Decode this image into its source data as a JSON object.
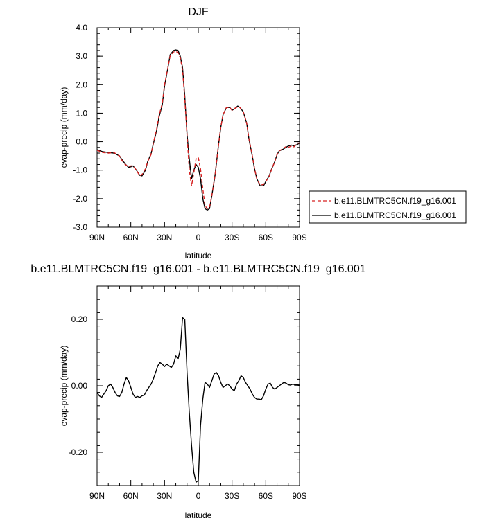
{
  "chart_data": [
    {
      "type": "line",
      "title": "DJF",
      "xlabel": "latitude",
      "ylabel": "evap-precip (mm/day)",
      "xlim": [
        90,
        -90
      ],
      "ylim": [
        -3.0,
        4.0
      ],
      "x_tick_values": [
        90,
        60,
        30,
        0,
        -30,
        -60,
        -90
      ],
      "x_tick_labels": [
        "90N",
        "60N",
        "30N",
        "0",
        "30S",
        "60S",
        "90S"
      ],
      "y_tick_values": [
        4.0,
        3.0,
        2.0,
        1.0,
        0.0,
        -1.0,
        -2.0,
        -3.0
      ],
      "y_tick_labels": [
        "4.0",
        "3.0",
        "2.0",
        "1.0",
        "0.0",
        "-1.0",
        "-2.0",
        "-3.0"
      ],
      "legend_position": "right",
      "series": [
        {
          "name": "b.e11.BLMTRC5CN.f19_g16.001",
          "color": "#d62020",
          "dash": "dashed",
          "x": [
            90,
            85,
            80,
            75,
            70,
            68,
            65,
            62,
            60,
            58,
            55,
            52,
            50,
            47,
            45,
            42,
            40,
            37,
            35,
            32,
            30,
            27,
            25,
            22,
            20,
            18,
            16,
            14,
            12,
            10,
            8,
            6,
            4,
            2,
            0,
            -2,
            -4,
            -6,
            -8,
            -10,
            -12,
            -15,
            -18,
            -20,
            -22,
            -25,
            -28,
            -30,
            -33,
            -35,
            -37,
            -40,
            -43,
            -45,
            -48,
            -50,
            -52,
            -55,
            -58,
            -60,
            -63,
            -65,
            -68,
            -70,
            -72,
            -75,
            -78,
            -80,
            -83,
            -85,
            -88,
            -90
          ],
          "y": [
            -0.3,
            -0.38,
            -0.4,
            -0.38,
            -0.5,
            -0.65,
            -0.8,
            -0.88,
            -0.85,
            -0.85,
            -1.0,
            -1.2,
            -1.15,
            -0.95,
            -0.7,
            -0.45,
            -0.05,
            0.45,
            0.9,
            1.35,
            2.0,
            2.6,
            3.0,
            3.15,
            3.17,
            3.12,
            2.95,
            2.5,
            1.5,
            0.2,
            -1.0,
            -1.55,
            -1.1,
            -0.6,
            -0.55,
            -0.95,
            -1.65,
            -2.25,
            -2.35,
            -2.3,
            -1.9,
            -1.15,
            -0.1,
            0.5,
            0.95,
            1.2,
            1.2,
            1.1,
            1.18,
            1.22,
            1.2,
            1.05,
            0.65,
            0.1,
            -0.5,
            -0.95,
            -1.3,
            -1.52,
            -1.5,
            -1.4,
            -1.22,
            -1.0,
            -0.7,
            -0.45,
            -0.32,
            -0.25,
            -0.17,
            -0.2,
            -0.15,
            -0.18,
            -0.05,
            -0.05
          ]
        },
        {
          "name": "b.e11.BLMTRC5CN.f19_g16.001",
          "color": "#000000",
          "dash": "solid",
          "x": [
            90,
            85,
            80,
            75,
            70,
            68,
            65,
            62,
            60,
            58,
            55,
            52,
            50,
            47,
            45,
            42,
            40,
            37,
            35,
            32,
            30,
            27,
            25,
            22,
            20,
            18,
            16,
            14,
            12,
            10,
            8,
            6,
            4,
            2,
            0,
            -2,
            -4,
            -6,
            -8,
            -10,
            -12,
            -15,
            -18,
            -20,
            -22,
            -25,
            -28,
            -30,
            -33,
            -35,
            -37,
            -40,
            -43,
            -45,
            -48,
            -50,
            -52,
            -55,
            -58,
            -60,
            -63,
            -65,
            -68,
            -70,
            -72,
            -75,
            -78,
            -80,
            -83,
            -85,
            -88,
            -90
          ],
          "y": [
            -0.28,
            -0.35,
            -0.38,
            -0.4,
            -0.5,
            -0.62,
            -0.78,
            -0.9,
            -0.88,
            -0.85,
            -1.0,
            -1.18,
            -1.2,
            -1.0,
            -0.7,
            -0.42,
            -0.08,
            0.4,
            0.85,
            1.3,
            1.95,
            2.6,
            3.05,
            3.2,
            3.22,
            3.2,
            3.0,
            2.6,
            1.6,
            0.25,
            -0.6,
            -1.3,
            -1.0,
            -0.8,
            -0.9,
            -1.3,
            -2.0,
            -2.35,
            -2.4,
            -2.35,
            -1.9,
            -1.15,
            -0.1,
            0.5,
            0.95,
            1.2,
            1.2,
            1.1,
            1.18,
            1.25,
            1.2,
            1.05,
            0.65,
            0.1,
            -0.5,
            -0.95,
            -1.3,
            -1.55,
            -1.55,
            -1.4,
            -1.2,
            -0.98,
            -0.7,
            -0.45,
            -0.32,
            -0.27,
            -0.2,
            -0.15,
            -0.12,
            -0.15,
            -0.1,
            -0.05
          ]
        }
      ]
    },
    {
      "type": "line",
      "title": "b.e11.BLMTRC5CN.f19_g16.001 - b.e11.BLMTRC5CN.f19_g16.001",
      "xlabel": "latitude",
      "ylabel": "evap-precip (mm/day)",
      "xlim": [
        90,
        -90
      ],
      "ylim": [
        -0.3,
        0.3
      ],
      "x_tick_values": [
        90,
        60,
        30,
        0,
        -30,
        -60,
        -90
      ],
      "x_tick_labels": [
        "90N",
        "60N",
        "30N",
        "0",
        "30S",
        "60S",
        "90S"
      ],
      "y_tick_values": [
        0.2,
        0.0,
        -0.2
      ],
      "y_tick_labels": [
        "0.20",
        "0.00",
        "-0.20"
      ],
      "series": [
        {
          "color": "#000000",
          "dash": "solid",
          "x": [
            90,
            88,
            86,
            84,
            82,
            80,
            78,
            76,
            74,
            72,
            70,
            68,
            66,
            64,
            62,
            60,
            58,
            56,
            54,
            52,
            50,
            48,
            46,
            44,
            42,
            40,
            38,
            36,
            34,
            32,
            30,
            28,
            26,
            24,
            22,
            20,
            18,
            16,
            14,
            12,
            10,
            8,
            6,
            4,
            2,
            0,
            -2,
            -4,
            -6,
            -8,
            -10,
            -12,
            -14,
            -16,
            -18,
            -20,
            -22,
            -24,
            -26,
            -28,
            -30,
            -32,
            -34,
            -36,
            -38,
            -40,
            -42,
            -44,
            -46,
            -48,
            -50,
            -52,
            -54,
            -56,
            -58,
            -60,
            -62,
            -64,
            -66,
            -68,
            -70,
            -72,
            -74,
            -76,
            -78,
            -80,
            -82,
            -84,
            -86,
            -88,
            -90
          ],
          "y": [
            -0.02,
            -0.03,
            -0.035,
            -0.025,
            -0.015,
            0.0,
            0.005,
            -0.005,
            -0.02,
            -0.03,
            -0.032,
            -0.02,
            0.005,
            0.025,
            0.015,
            -0.005,
            -0.025,
            -0.035,
            -0.032,
            -0.035,
            -0.03,
            -0.028,
            -0.015,
            -0.005,
            0.005,
            0.02,
            0.04,
            0.06,
            0.07,
            0.065,
            0.058,
            0.065,
            0.06,
            0.055,
            0.065,
            0.09,
            0.08,
            0.11,
            0.205,
            0.2,
            0.04,
            -0.08,
            -0.18,
            -0.26,
            -0.29,
            -0.285,
            -0.12,
            -0.04,
            0.01,
            0.005,
            -0.005,
            0.015,
            0.035,
            0.04,
            0.03,
            0.01,
            -0.005,
            0.0,
            0.005,
            0.0,
            -0.01,
            -0.015,
            0.005,
            0.015,
            0.03,
            0.025,
            0.01,
            0.0,
            -0.01,
            -0.025,
            -0.035,
            -0.04,
            -0.04,
            -0.042,
            -0.03,
            -0.01,
            0.005,
            0.008,
            -0.005,
            -0.01,
            -0.005,
            0.0,
            0.005,
            0.01,
            0.008,
            0.003,
            0.002,
            0.005,
            0.003,
            0.003,
            0.002
          ]
        }
      ]
    }
  ]
}
